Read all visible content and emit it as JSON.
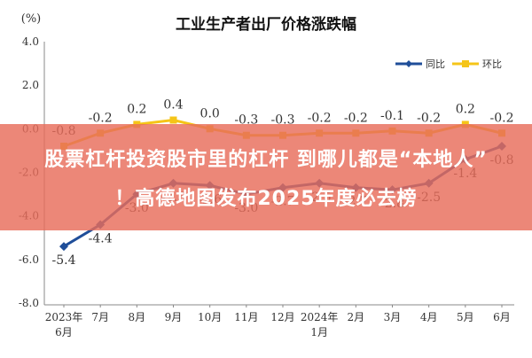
{
  "chart_data": {
    "type": "line",
    "title": "工业生产者出厂价格涨跌幅",
    "y_unit_label": "(%)",
    "ylim": [
      -8.0,
      4.0
    ],
    "y_ticks": [
      "4.0",
      "2.0",
      "0.0",
      "-2.0",
      "-4.0",
      "-6.0",
      "-8.0"
    ],
    "categories": [
      [
        "2023年",
        "6月"
      ],
      [
        "7月"
      ],
      [
        "8月"
      ],
      [
        "9月"
      ],
      [
        "10月"
      ],
      [
        "11月"
      ],
      [
        "12月"
      ],
      [
        "2024年",
        "1月"
      ],
      [
        "2月"
      ],
      [
        "3月"
      ],
      [
        "4月"
      ],
      [
        "5月"
      ],
      [
        "6月"
      ]
    ],
    "series": [
      {
        "name": "同比",
        "color": "#1f4e99",
        "values": [
          -5.4,
          -4.4,
          -3.0,
          -2.5,
          -2.6,
          -3.0,
          -2.7,
          -2.5,
          -2.7,
          -2.8,
          -2.5,
          -1.4,
          -0.8
        ],
        "labels": [
          "-5.4",
          "-4.4",
          "-3.0",
          "-2.5",
          "-2.6",
          "-3.0",
          "-2.7",
          "-2.5",
          "-2.7",
          "-2.8",
          "-2.5",
          "-1.4",
          "-0.8"
        ]
      },
      {
        "name": "环比",
        "color": "#f5c518",
        "values": [
          -0.8,
          -0.2,
          0.2,
          0.4,
          0.0,
          -0.3,
          -0.3,
          -0.2,
          -0.2,
          -0.1,
          -0.2,
          0.2,
          -0.2
        ],
        "labels": [
          "-0.8",
          "-0.2",
          "0.2",
          "0.4",
          "0.0",
          "-0.3",
          "-0.3",
          "-0.2",
          "-0.2",
          "-0.1",
          "-0.2",
          "0.2",
          "-0.2"
        ]
      }
    ],
    "legend_position": "top-right",
    "grid": false
  },
  "overlay": {
    "line1": "股票杠杆投资股市里的杠杆 到哪儿都是“本地人”",
    "line2": "！高德地图发布2025年度必去榜"
  }
}
